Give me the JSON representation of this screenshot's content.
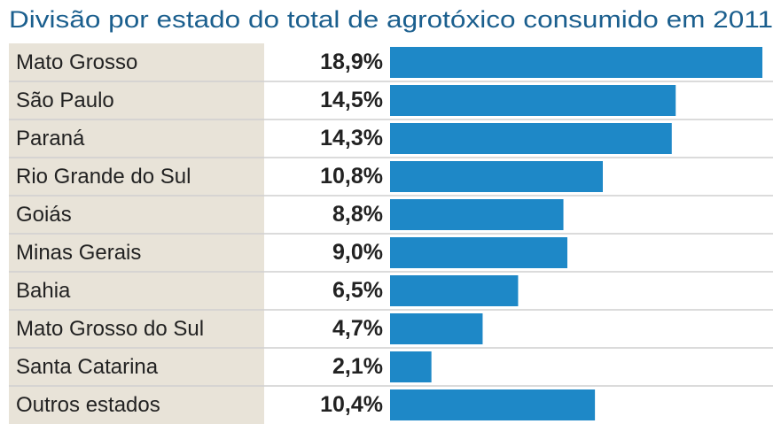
{
  "chart_data": {
    "type": "hbar",
    "title": "Divisão por estado do total de agrotóxico consumido em 2011",
    "categories": [
      "Mato Grosso",
      "São Paulo",
      "Paraná",
      "Rio Grande do Sul",
      "Goiás",
      "Minas Gerais",
      "Bahia",
      "Mato Grosso do Sul",
      "Santa Catarina",
      "Outros estados"
    ],
    "values": [
      18.9,
      14.5,
      14.3,
      10.8,
      8.8,
      9.0,
      6.5,
      4.7,
      2.1,
      10.4
    ],
    "value_labels": [
      "18,9%",
      "14,5%",
      "14,3%",
      "10,8%",
      "8,8%",
      "9,0%",
      "6,5%",
      "4,7%",
      "2,1%",
      "10,4%"
    ],
    "color": "#1e88c7"
  }
}
